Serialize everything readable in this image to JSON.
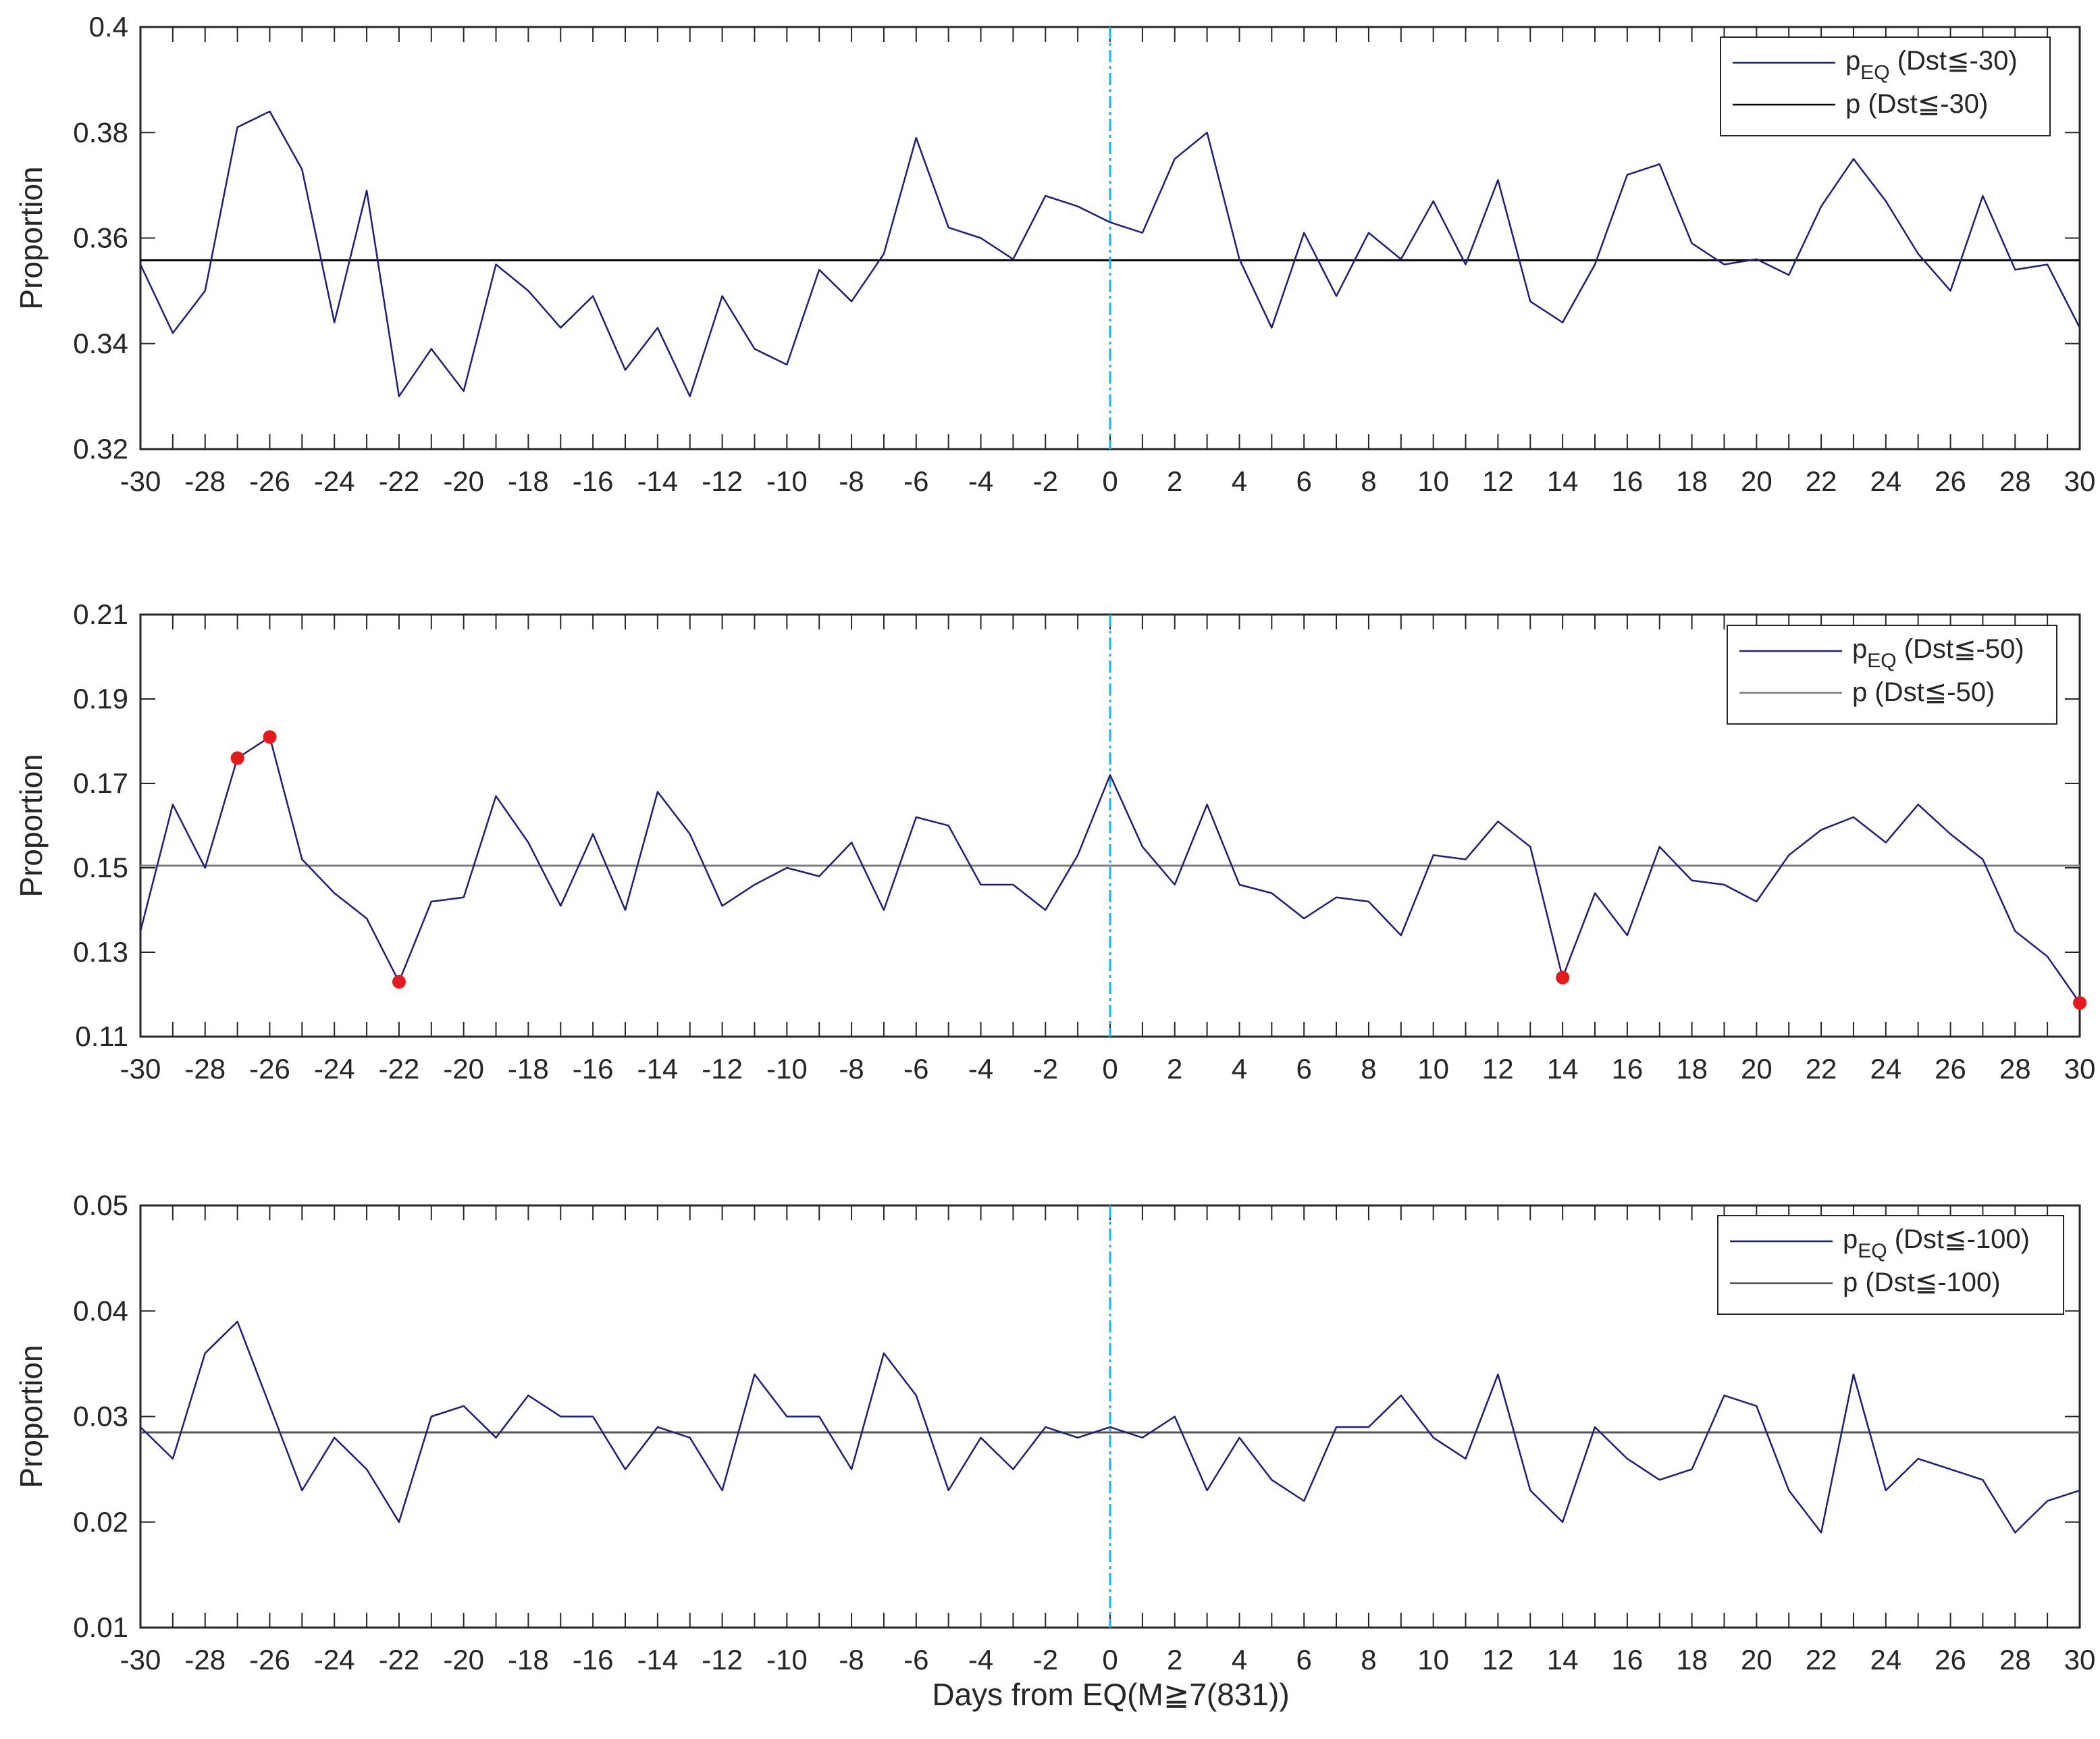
{
  "xlabel": "Days from EQ(M≧7(831))",
  "chart_data": [
    {
      "type": "line",
      "ylabel": "Proportion",
      "ylim": [
        0.32,
        0.4
      ],
      "yticks": [
        "0.32",
        "0.34",
        "0.36",
        "0.38",
        "0.4"
      ],
      "xlim": [
        -30,
        30
      ],
      "x": [
        -30,
        -29,
        -28,
        -27,
        -26,
        -25,
        -24,
        -23,
        -22,
        -21,
        -20,
        -19,
        -18,
        -17,
        -16,
        -15,
        -14,
        -13,
        -12,
        -11,
        -10,
        -9,
        -8,
        -7,
        -6,
        -5,
        -4,
        -3,
        -2,
        -1,
        0,
        1,
        2,
        3,
        4,
        5,
        6,
        7,
        8,
        9,
        10,
        11,
        12,
        13,
        14,
        15,
        16,
        17,
        18,
        19,
        20,
        21,
        22,
        23,
        24,
        25,
        26,
        27,
        28,
        29,
        30
      ],
      "series": [
        {
          "name": "pEQ (Dst≦-30)",
          "values": [
            0.355,
            0.342,
            0.35,
            0.381,
            0.384,
            0.373,
            0.344,
            0.369,
            0.33,
            0.339,
            0.331,
            0.355,
            0.35,
            0.343,
            0.349,
            0.335,
            0.343,
            0.33,
            0.349,
            0.339,
            0.336,
            0.354,
            0.348,
            0.357,
            0.379,
            0.362,
            0.36,
            0.356,
            0.368,
            0.366,
            0.363,
            0.361,
            0.375,
            0.38,
            0.356,
            0.343,
            0.361,
            0.349,
            0.361,
            0.356,
            0.367,
            0.355,
            0.371,
            0.348,
            0.344,
            0.355,
            0.372,
            0.374,
            0.359,
            0.355,
            0.356,
            0.353,
            0.366,
            0.375,
            0.367,
            0.357,
            0.35,
            0.368,
            0.354,
            0.355,
            0.343
          ]
        }
      ],
      "baseline": 0.3558,
      "event_line_x": 0,
      "highlighted_points": [],
      "legend": {
        "pEQ_main": "p",
        "pEQ_sub": "EQ",
        "pEQ_rest": " (Dst≦-30)",
        "p_label": "p (Dst≦-30)"
      },
      "colors": {
        "series": "#1f1f7a",
        "baseline": "#000000",
        "event": "#00bfff",
        "highlight": "#e41a1c"
      }
    },
    {
      "type": "line",
      "ylabel": "Proportion",
      "ylim": [
        0.11,
        0.21
      ],
      "yticks": [
        "0.11",
        "0.13",
        "0.15",
        "0.17",
        "0.19",
        "0.21"
      ],
      "xlim": [
        -30,
        30
      ],
      "x": [
        -30,
        -29,
        -28,
        -27,
        -26,
        -25,
        -24,
        -23,
        -22,
        -21,
        -20,
        -19,
        -18,
        -17,
        -16,
        -15,
        -14,
        -13,
        -12,
        -11,
        -10,
        -9,
        -8,
        -7,
        -6,
        -5,
        -4,
        -3,
        -2,
        -1,
        0,
        1,
        2,
        3,
        4,
        5,
        6,
        7,
        8,
        9,
        10,
        11,
        12,
        13,
        14,
        15,
        16,
        17,
        18,
        19,
        20,
        21,
        22,
        23,
        24,
        25,
        26,
        27,
        28,
        29,
        30
      ],
      "series": [
        {
          "name": "pEQ (Dst≦-50)",
          "values": [
            0.135,
            0.165,
            0.15,
            0.176,
            0.181,
            0.152,
            0.144,
            0.138,
            0.123,
            0.142,
            0.143,
            0.167,
            0.156,
            0.141,
            0.158,
            0.14,
            0.168,
            0.158,
            0.141,
            0.146,
            0.15,
            0.148,
            0.156,
            0.14,
            0.162,
            0.16,
            0.146,
            0.146,
            0.14,
            0.153,
            0.172,
            0.155,
            0.146,
            0.165,
            0.146,
            0.144,
            0.138,
            0.143,
            0.142,
            0.134,
            0.153,
            0.152,
            0.161,
            0.155,
            0.124,
            0.144,
            0.134,
            0.155,
            0.147,
            0.146,
            0.142,
            0.153,
            0.159,
            0.162,
            0.156,
            0.165,
            0.158,
            0.152,
            0.135,
            0.129,
            0.118
          ]
        }
      ],
      "baseline": 0.1505,
      "event_line_x": 0,
      "highlighted_points": [
        {
          "x": -27,
          "y": 0.176
        },
        {
          "x": -26,
          "y": 0.181
        },
        {
          "x": -22,
          "y": 0.123
        },
        {
          "x": 14,
          "y": 0.124
        },
        {
          "x": 30,
          "y": 0.118
        }
      ],
      "legend": {
        "pEQ_main": "p",
        "pEQ_sub": "EQ",
        "pEQ_rest": " (Dst≦-50)",
        "p_label": "p (Dst≦-50)"
      },
      "colors": {
        "series": "#1f1f7a",
        "baseline": "#7f7f7f",
        "event": "#00bfff",
        "highlight": "#e41a1c"
      }
    },
    {
      "type": "line",
      "ylabel": "Proportion",
      "ylim": [
        0.01,
        0.05
      ],
      "yticks": [
        "0.01",
        "0.02",
        "0.03",
        "0.04",
        "0.05"
      ],
      "xlim": [
        -30,
        30
      ],
      "x": [
        -30,
        -29,
        -28,
        -27,
        -26,
        -25,
        -24,
        -23,
        -22,
        -21,
        -20,
        -19,
        -18,
        -17,
        -16,
        -15,
        -14,
        -13,
        -12,
        -11,
        -10,
        -9,
        -8,
        -7,
        -6,
        -5,
        -4,
        -3,
        -2,
        -1,
        0,
        1,
        2,
        3,
        4,
        5,
        6,
        7,
        8,
        9,
        10,
        11,
        12,
        13,
        14,
        15,
        16,
        17,
        18,
        19,
        20,
        21,
        22,
        23,
        24,
        25,
        26,
        27,
        28,
        29,
        30
      ],
      "series": [
        {
          "name": "pEQ (Dst≦-100)",
          "values": [
            0.029,
            0.026,
            0.036,
            0.039,
            0.031,
            0.023,
            0.028,
            0.025,
            0.02,
            0.03,
            0.031,
            0.028,
            0.032,
            0.03,
            0.03,
            0.025,
            0.029,
            0.028,
            0.023,
            0.034,
            0.03,
            0.03,
            0.025,
            0.036,
            0.032,
            0.023,
            0.028,
            0.025,
            0.029,
            0.028,
            0.029,
            0.028,
            0.03,
            0.023,
            0.028,
            0.024,
            0.022,
            0.029,
            0.029,
            0.032,
            0.028,
            0.026,
            0.034,
            0.023,
            0.02,
            0.029,
            0.026,
            0.024,
            0.025,
            0.032,
            0.031,
            0.023,
            0.019,
            0.034,
            0.023,
            0.026,
            0.025,
            0.024,
            0.019,
            0.022,
            0.023
          ]
        }
      ],
      "baseline": 0.0285,
      "event_line_x": 0,
      "highlighted_points": [],
      "legend": {
        "pEQ_main": "p",
        "pEQ_sub": "EQ",
        "pEQ_rest": " (Dst≦-100)",
        "p_label": "p (Dst≦-100)"
      },
      "colors": {
        "series": "#1f1f7a",
        "baseline": "#555555",
        "event": "#00bfff",
        "highlight": "#e41a1c"
      }
    }
  ]
}
